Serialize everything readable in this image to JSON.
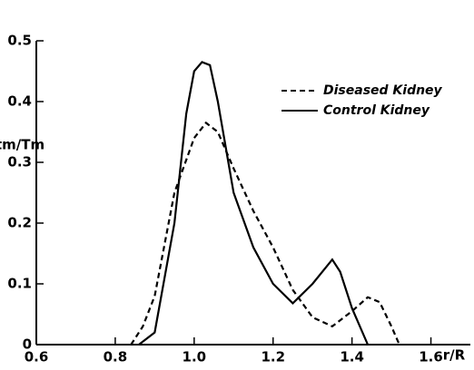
{
  "chart_data": {
    "type": "line",
    "xlabel": "r/R",
    "ylabel": "tm/Tm",
    "xlim": [
      0.6,
      1.7
    ],
    "ylim": [
      0,
      0.5
    ],
    "xticks": [
      0.6,
      0.8,
      {
        "value": 1,
        "label": "1.0"
      },
      1.2,
      1.4,
      1.6
    ],
    "yticks": [
      0,
      0.1,
      0.2,
      0.3,
      0.4,
      0.5
    ],
    "series": [
      {
        "name": "Diseased Kidney",
        "color": "#000000",
        "dashed": true,
        "x": [
          0.84,
          0.87,
          0.9,
          0.95,
          1.0,
          1.03,
          1.06,
          1.1,
          1.15,
          1.2,
          1.25,
          1.3,
          1.35,
          1.4,
          1.44,
          1.47,
          1.5,
          1.52
        ],
        "values": [
          0,
          0.03,
          0.08,
          0.25,
          0.34,
          0.365,
          0.35,
          0.29,
          0.22,
          0.16,
          0.09,
          0.045,
          0.03,
          0.055,
          0.078,
          0.07,
          0.03,
          0
        ]
      },
      {
        "name": "Control Kidney",
        "color": "#000000",
        "dashed": false,
        "x": [
          0.86,
          0.9,
          0.95,
          0.98,
          1.0,
          1.02,
          1.04,
          1.06,
          1.1,
          1.15,
          1.2,
          1.25,
          1.3,
          1.35,
          1.37,
          1.4,
          1.44
        ],
        "values": [
          0,
          0.02,
          0.2,
          0.38,
          0.45,
          0.465,
          0.46,
          0.4,
          0.25,
          0.16,
          0.1,
          0.068,
          0.1,
          0.14,
          0.12,
          0.06,
          0
        ]
      }
    ]
  }
}
